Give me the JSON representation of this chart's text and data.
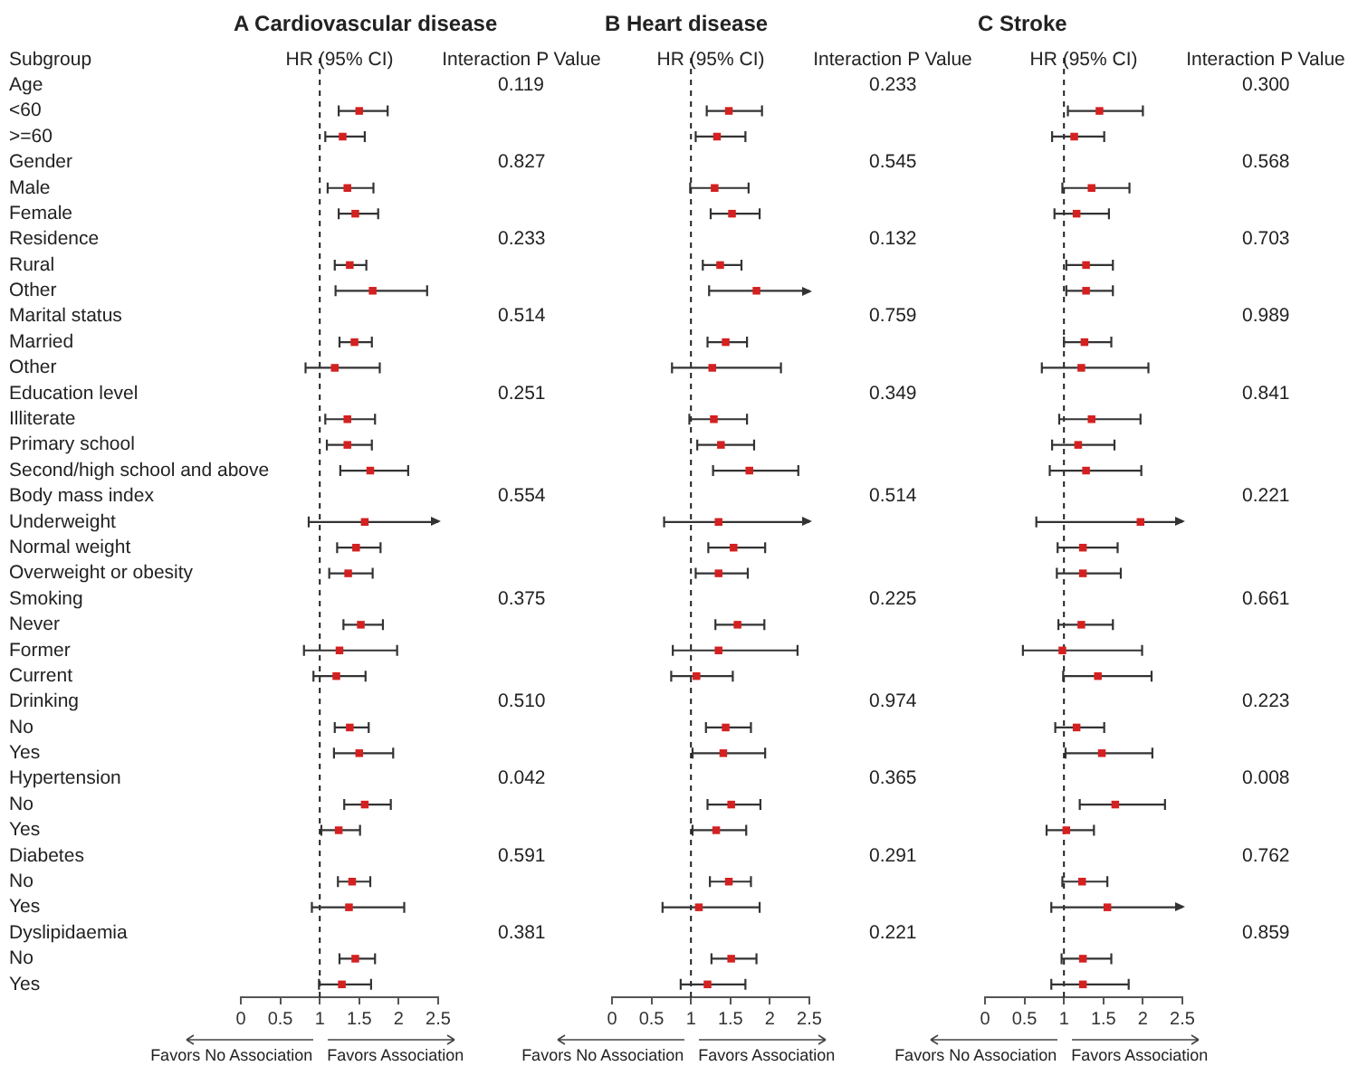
{
  "chart_data": [
    {
      "type": "scatter",
      "orientation": "horizontal",
      "title": "A Cardiovascular disease",
      "marker": "square",
      "grid": false,
      "categories": [
        "Age",
        "<60",
        ">=60",
        "Gender",
        "Male",
        "Female",
        "Residence",
        "Rural",
        "Other",
        "Marital status",
        "Married",
        "Other",
        "Education level",
        "Illiterate",
        "Primary school",
        "Second/high school and above",
        "Body mass index",
        "Underweight",
        "Normal weight",
        "Overweight or obesity",
        "Smoking",
        "Never",
        "Former",
        "Current",
        "Drinking",
        "No",
        "Yes",
        "Hypertension",
        "No",
        "Yes",
        "Diabetes",
        "No",
        "Yes",
        "Dyslipidaemia",
        "No",
        "Yes"
      ],
      "series": [
        {
          "color": "#d42020",
          "values": [
            null,
            1.5,
            1.29,
            null,
            1.35,
            1.45,
            null,
            1.38,
            1.67,
            null,
            1.44,
            1.19,
            null,
            1.35,
            1.35,
            1.64,
            null,
            1.57,
            1.46,
            1.36,
            null,
            1.52,
            1.25,
            1.21,
            null,
            1.38,
            1.5,
            null,
            1.57,
            1.24,
            null,
            1.41,
            1.37,
            null,
            1.45,
            1.28
          ],
          "errors": [
            null,
            [
              1.24,
              1.86
            ],
            [
              1.07,
              1.57
            ],
            null,
            [
              1.1,
              1.68
            ],
            [
              1.24,
              1.74
            ],
            null,
            [
              1.19,
              1.59
            ],
            [
              1.2,
              2.36
            ],
            null,
            [
              1.25,
              1.66
            ],
            [
              0.82,
              1.76
            ],
            null,
            [
              1.07,
              1.7
            ],
            [
              1.09,
              1.66
            ],
            [
              1.26,
              2.12
            ],
            null,
            [
              0.86,
              2.5
            ],
            [
              1.22,
              1.77
            ],
            [
              1.12,
              1.67
            ],
            null,
            [
              1.3,
              1.8
            ],
            [
              0.8,
              1.98
            ],
            [
              0.92,
              1.58
            ],
            null,
            [
              1.19,
              1.62
            ],
            [
              1.18,
              1.93
            ],
            null,
            [
              1.31,
              1.9
            ],
            [
              1.02,
              1.51
            ],
            null,
            [
              1.23,
              1.64
            ],
            [
              0.9,
              2.07
            ],
            null,
            [
              1.25,
              1.7
            ],
            [
              0.99,
              1.65
            ]
          ]
        }
      ],
      "xlim": [
        0,
        2.5
      ],
      "xticks": [
        0,
        0.5,
        1,
        1.5,
        2,
        2.5
      ],
      "ref_lines": [
        {
          "axis": "x",
          "value": 1,
          "line_style": "dashed"
        }
      ],
      "annotations": [
        "Subgroup",
        "HR (95% CI)",
        "Interaction P Value",
        "Favors No Association",
        "Favors Association",
        "0.119",
        "0.827",
        "0.233",
        "0.514",
        "0.251",
        "0.554",
        "0.375",
        "0.510",
        "0.042",
        "0.591",
        "0.381"
      ]
    },
    {
      "type": "scatter",
      "orientation": "horizontal",
      "title": "B Heart disease",
      "marker": "square",
      "grid": false,
      "tick_labels": "x",
      "categories": [
        null,
        null,
        null,
        null,
        null,
        null,
        null,
        null,
        null,
        null,
        null,
        null,
        null,
        null,
        null,
        null,
        null,
        null,
        null,
        null,
        null,
        null,
        null,
        null,
        null,
        null,
        null,
        null,
        null,
        null,
        null,
        null,
        null,
        null,
        null,
        null
      ],
      "series": [
        {
          "color": "#d42020",
          "values": [
            null,
            1.48,
            1.33,
            null,
            1.3,
            1.52,
            null,
            1.37,
            1.83,
            null,
            1.44,
            1.27,
            null,
            1.29,
            1.38,
            1.74,
            null,
            1.35,
            1.54,
            1.35,
            null,
            1.59,
            1.35,
            1.07,
            null,
            1.44,
            1.41,
            null,
            1.51,
            1.32,
            null,
            1.48,
            1.1,
            null,
            1.51,
            1.21
          ],
          "errors": [
            null,
            [
              1.2,
              1.9
            ],
            [
              1.06,
              1.69
            ],
            null,
            [
              0.99,
              1.73
            ],
            [
              1.25,
              1.87
            ],
            null,
            [
              1.15,
              1.64
            ],
            [
              1.23,
              2.5
            ],
            null,
            [
              1.21,
              1.71
            ],
            [
              0.76,
              2.14
            ],
            null,
            [
              0.98,
              1.71
            ],
            [
              1.08,
              1.8
            ],
            [
              1.28,
              2.36
            ],
            null,
            [
              0.66,
              2.5
            ],
            [
              1.22,
              1.94
            ],
            [
              1.06,
              1.72
            ],
            null,
            [
              1.31,
              1.93
            ],
            [
              0.77,
              2.35
            ],
            [
              0.75,
              1.53
            ],
            null,
            [
              1.19,
              1.76
            ],
            [
              1.02,
              1.94
            ],
            null,
            [
              1.21,
              1.88
            ],
            [
              1.02,
              1.7
            ],
            null,
            [
              1.24,
              1.76
            ],
            [
              0.64,
              1.87
            ],
            null,
            [
              1.26,
              1.83
            ],
            [
              0.87,
              1.69
            ]
          ]
        }
      ],
      "xlim": [
        0,
        2.5
      ],
      "xticks": [
        0,
        0.5,
        1,
        1.5,
        2,
        2.5
      ],
      "ref_lines": [
        {
          "axis": "x",
          "value": 1,
          "line_style": "dashed"
        }
      ],
      "annotations": [
        "HR (95% CI)",
        "Interaction P Value",
        "Favors No Association",
        "Favors Association",
        "0.233",
        "0.545",
        "0.132",
        "0.759",
        "0.349",
        "0.514",
        "0.225",
        "0.974",
        "0.365",
        "0.291",
        "0.221"
      ]
    },
    {
      "type": "scatter",
      "orientation": "horizontal",
      "title": "C Stroke",
      "marker": "square",
      "grid": false,
      "tick_labels": "x",
      "categories": [
        null,
        null,
        null,
        null,
        null,
        null,
        null,
        null,
        null,
        null,
        null,
        null,
        null,
        null,
        null,
        null,
        null,
        null,
        null,
        null,
        null,
        null,
        null,
        null,
        null,
        null,
        null,
        null,
        null,
        null,
        null,
        null,
        null,
        null,
        null,
        null
      ],
      "series": [
        {
          "color": "#d42020",
          "values": [
            null,
            1.45,
            1.13,
            null,
            1.35,
            1.16,
            null,
            1.28,
            1.28,
            null,
            1.26,
            1.22,
            null,
            1.35,
            1.18,
            1.28,
            null,
            1.97,
            1.24,
            1.24,
            null,
            1.22,
            0.98,
            1.43,
            null,
            1.16,
            1.48,
            null,
            1.65,
            1.03,
            null,
            1.23,
            1.55,
            null,
            1.24,
            1.24
          ],
          "errors": [
            null,
            [
              1.05,
              2.0
            ],
            [
              0.85,
              1.51
            ],
            null,
            [
              0.98,
              1.83
            ],
            [
              0.88,
              1.57
            ],
            null,
            [
              1.03,
              1.62
            ],
            [
              1.03,
              1.62
            ],
            null,
            [
              1.0,
              1.6
            ],
            [
              0.72,
              2.07
            ],
            null,
            [
              0.94,
              1.97
            ],
            [
              0.85,
              1.64
            ],
            [
              0.82,
              1.98
            ],
            null,
            [
              0.65,
              2.5
            ],
            [
              0.92,
              1.68
            ],
            [
              0.91,
              1.72
            ],
            null,
            [
              0.93,
              1.62
            ],
            [
              0.48,
              1.99
            ],
            [
              0.99,
              2.11
            ],
            null,
            [
              0.89,
              1.51
            ],
            [
              1.02,
              2.12
            ],
            null,
            [
              1.2,
              2.28
            ],
            [
              0.78,
              1.38
            ],
            null,
            [
              0.98,
              1.55
            ],
            [
              0.84,
              2.5
            ],
            null,
            [
              0.97,
              1.6
            ],
            [
              0.84,
              1.82
            ]
          ]
        }
      ],
      "xlim": [
        0,
        2.5
      ],
      "xticks": [
        0,
        0.5,
        1,
        1.5,
        2,
        2.5
      ],
      "ref_lines": [
        {
          "axis": "x",
          "value": 1,
          "line_style": "dashed"
        }
      ],
      "annotations": [
        "HR (95% CI)",
        "Interaction P Value",
        "Favors No Association",
        "Favors Association",
        "0.300",
        "0.568",
        "0.703",
        "0.989",
        "0.841",
        "0.221",
        "0.661",
        "0.223",
        "0.008",
        "0.762",
        "0.859"
      ]
    }
  ]
}
